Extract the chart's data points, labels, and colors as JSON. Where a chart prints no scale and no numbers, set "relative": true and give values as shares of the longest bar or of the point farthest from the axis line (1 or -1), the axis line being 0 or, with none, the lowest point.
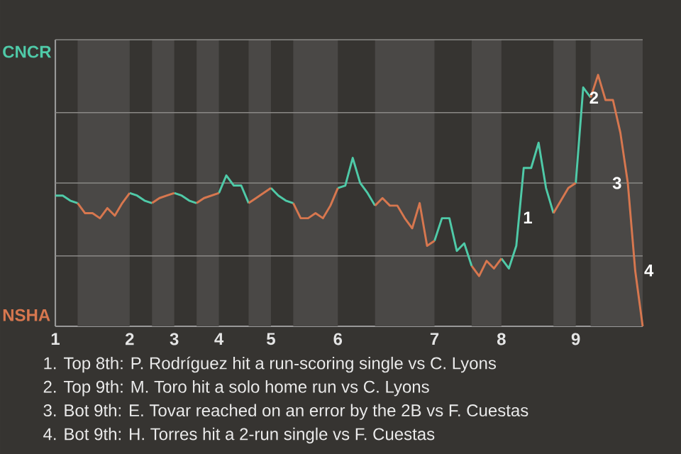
{
  "chart_data": {
    "type": "line",
    "relative": true,
    "categories": [
      "1",
      null,
      null,
      null,
      null,
      null,
      null,
      null,
      null,
      null,
      "2",
      null,
      null,
      null,
      null,
      null,
      "3",
      null,
      null,
      null,
      null,
      null,
      "4",
      null,
      null,
      null,
      null,
      null,
      null,
      "5",
      null,
      null,
      null,
      null,
      null,
      null,
      null,
      null,
      "6",
      null,
      null,
      null,
      null,
      null,
      null,
      null,
      null,
      null,
      null,
      null,
      null,
      "7",
      null,
      null,
      null,
      null,
      null,
      null,
      null,
      null,
      "8",
      null,
      null,
      null,
      null,
      null,
      null,
      null,
      null,
      null,
      "9",
      null,
      null,
      null,
      null,
      null,
      null,
      null,
      null,
      null
    ],
    "ref_lines": [
      {
        "axis": "y",
        "value": 0.28,
        "color": "#8a8886"
      },
      {
        "axis": "y",
        "value": 0.57,
        "color": "#8a8886"
      },
      {
        "axis": "y",
        "value": 0.85,
        "color": "#8a8886"
      },
      {
        "axis": "y",
        "value": 1.14,
        "color": "#8a8886"
      }
    ],
    "series": [
      {
        "color": "#4fcaa8",
        "values": [
          0.52,
          0.52,
          0.5,
          0.49,
          null,
          null,
          null,
          null,
          null,
          null,
          0.53,
          0.52,
          0.5,
          0.49,
          null,
          null,
          0.53,
          0.52,
          0.5,
          0.49,
          null,
          null,
          0.53,
          0.6,
          0.56,
          0.56,
          0.49,
          null,
          null,
          0.55,
          0.52,
          0.5,
          0.49,
          null,
          null,
          null,
          null,
          null,
          0.55,
          0.56,
          0.67,
          0.57,
          0.53,
          0.48,
          null,
          null,
          null,
          null,
          null,
          null,
          null,
          0.34,
          0.43,
          0.43,
          0.3,
          0.33,
          0.24,
          null,
          null,
          null,
          0.27,
          0.23,
          0.32,
          0.63,
          0.63,
          0.73,
          0.55,
          0.45,
          null,
          null,
          0.57,
          0.95,
          0.91,
          null,
          null,
          null,
          null,
          null,
          null,
          null
        ]
      },
      {
        "color": "#d7774f",
        "values": [
          null,
          null,
          null,
          0.49,
          0.45,
          0.45,
          0.43,
          0.47,
          0.44,
          0.49,
          0.53,
          null,
          null,
          0.49,
          0.51,
          0.52,
          0.53,
          null,
          null,
          0.49,
          0.51,
          0.52,
          0.53,
          null,
          null,
          null,
          0.49,
          0.51,
          0.53,
          0.55,
          null,
          null,
          0.49,
          0.43,
          0.43,
          0.45,
          0.43,
          0.48,
          0.55,
          null,
          null,
          null,
          null,
          0.48,
          0.51,
          0.48,
          0.48,
          0.43,
          0.39,
          0.49,
          0.32,
          0.34,
          null,
          null,
          null,
          null,
          0.24,
          0.2,
          0.26,
          0.23,
          0.27,
          null,
          null,
          null,
          null,
          null,
          null,
          0.45,
          0.5,
          0.55,
          0.57,
          null,
          0.91,
          1,
          0.9,
          0.9,
          0.77,
          0.57,
          0.22,
          0
        ]
      }
    ],
    "annotations": [
      "CNCR",
      "NSHA",
      "1",
      {
        "text": "2",
        "y": 0.95
      },
      {
        "text": "3",
        "y": 0.57
      },
      "4",
      "1. Top 8th: P. Rodríguez hit a run-scoring single vs C. Lyons",
      "2. Top 9th: M. Toro hit a solo home run vs C. Lyons",
      "3. Bot 9th: E. Tovar reached on an error by the 2B vs F. Cuestas",
      "4. Bot 9th: H. Torres hit a 2-run single vs F. Cuestas"
    ]
  }
}
